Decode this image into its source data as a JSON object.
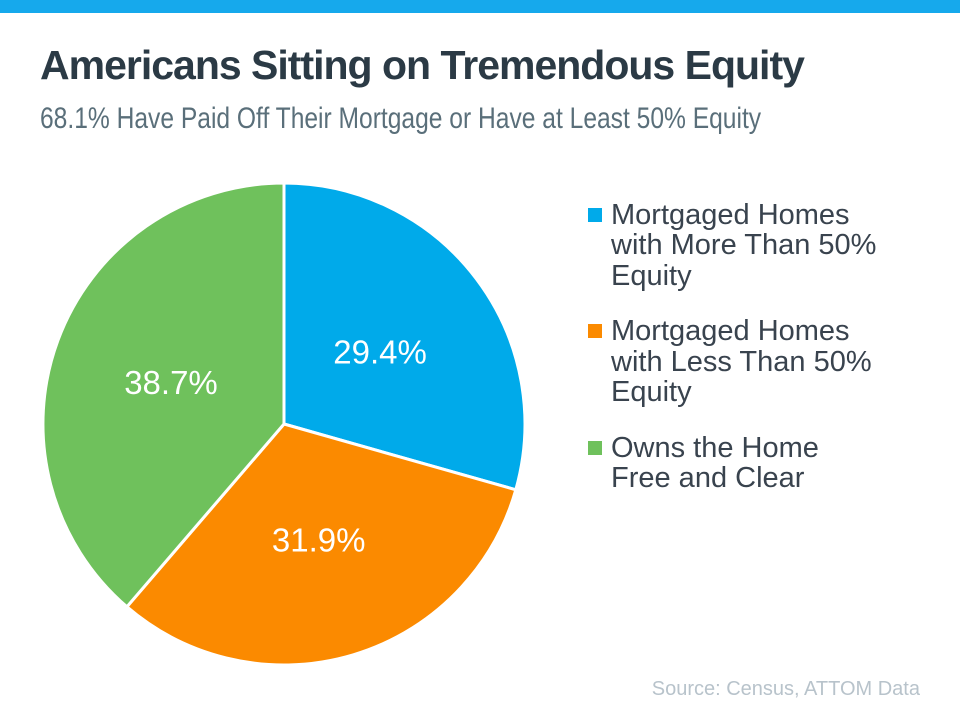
{
  "page": {
    "title": "Americans Sitting on Tremendous Equity",
    "subtitle": "68.1% Have Paid Off Their Mortgage or Have at Least 50% Equity",
    "source_note": "Source: Census, ATTOM Data",
    "accent_bar_color": "#16a9ec"
  },
  "chart_data": {
    "type": "pie",
    "title": "Americans Sitting on Tremendous Equity",
    "subtitle": "68.1% Have Paid Off Their Mortgage or Have at Least 50% Equity",
    "start_angle_deg": 0,
    "direction": "clockwise",
    "legend_position": "right",
    "data_labels": "inside-percent",
    "source_note": "Source: Census, ATTOM Data",
    "slices": [
      {
        "label": "Mortgaged Homes with More Than 50% Equity",
        "label_display": "Mortgaged Homes\nwith More Than 50%\nEquity",
        "value": 29.4,
        "value_display": "29.4%",
        "color": "#00aaea"
      },
      {
        "label": "Mortgaged Homes with Less Than 50% Equity",
        "label_display": "Mortgaged Homes\nwith Less Than 50%\nEquity",
        "value": 31.9,
        "value_display": "31.9%",
        "color": "#fb8a00"
      },
      {
        "label": "Owns the Home Free and Clear",
        "label_display": "Owns the Home\nFree and Clear",
        "value": 38.7,
        "value_display": "38.7%",
        "color": "#6fc15c"
      }
    ]
  }
}
